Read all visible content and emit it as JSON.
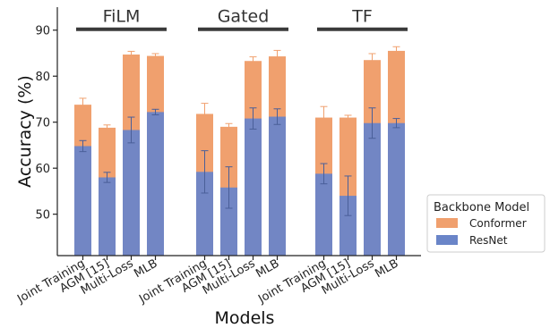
{
  "chart_data": {
    "type": "bar",
    "ylabel": "Accuracy (%)",
    "xlabel": "Models",
    "ylim": [
      41,
      95
    ],
    "yticks": [
      50,
      60,
      70,
      80,
      90
    ],
    "grid": false,
    "legend_position": "right",
    "legend_title": "Backbone Model",
    "colors": {
      "Conformer": "#f0a06e",
      "ResNet": "#6a85c8",
      "error": "#555555",
      "group_bar": "#3a3a3a"
    },
    "groups": [
      {
        "name": "FiLM",
        "categories": [
          "Joint Training",
          "AGM [15]",
          "Multi-Loss",
          "MLB"
        ],
        "series": [
          {
            "name": "Conformer",
            "values": [
              73.8,
              68.8,
              84.7,
              84.4
            ],
            "errors": [
              1.4,
              0.6,
              0.7,
              0.5
            ]
          },
          {
            "name": "ResNet",
            "values": [
              64.8,
              58.0,
              68.3,
              72.2
            ],
            "errors": [
              1.2,
              1.1,
              2.8,
              0.6
            ]
          }
        ]
      },
      {
        "name": "Gated",
        "categories": [
          "Joint Training",
          "AGM [15]",
          "Multi-Loss",
          "MLB"
        ],
        "series": [
          {
            "name": "Conformer",
            "values": [
              71.8,
              69.0,
              83.3,
              84.3
            ],
            "errors": [
              2.3,
              0.7,
              0.9,
              1.3
            ]
          },
          {
            "name": "ResNet",
            "values": [
              59.2,
              55.8,
              70.8,
              71.2
            ],
            "errors": [
              4.6,
              4.5,
              2.3,
              1.7
            ]
          }
        ]
      },
      {
        "name": "TF",
        "categories": [
          "Joint Training",
          "AGM [15]",
          "Multi-Loss",
          "MLB"
        ],
        "series": [
          {
            "name": "Conformer",
            "values": [
              71.0,
              71.0,
              83.5,
              85.5
            ],
            "errors": [
              2.4,
              0.5,
              1.4,
              0.9
            ]
          },
          {
            "name": "ResNet",
            "values": [
              58.8,
              54.0,
              69.8,
              69.8
            ],
            "errors": [
              2.2,
              4.3,
              3.3,
              1.0
            ]
          }
        ]
      }
    ]
  }
}
